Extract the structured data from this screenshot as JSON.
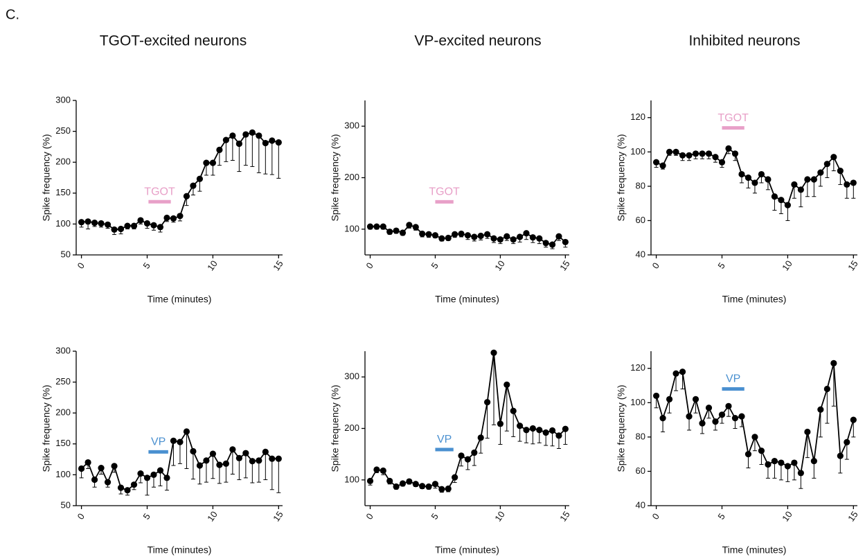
{
  "panel_label": "C.",
  "chart_data": [
    {
      "type": "line",
      "title": "TGOT-excited neurons",
      "xlabel": "Time (minutes)",
      "ylabel": "Spike frequency (%)",
      "x": [
        0,
        0.5,
        1,
        1.5,
        2,
        2.5,
        3,
        3.5,
        4,
        4.5,
        5,
        5.5,
        6,
        6.5,
        7,
        7.5,
        8,
        8.5,
        9,
        9.5,
        10,
        10.5,
        11,
        11.5,
        12,
        12.5,
        13,
        13.5,
        14,
        14.5,
        15
      ],
      "values": [
        103,
        104,
        102,
        101,
        99,
        91,
        92,
        97,
        97,
        106,
        101,
        98,
        95,
        110,
        109,
        113,
        145,
        162,
        173,
        199,
        199,
        220,
        236,
        243,
        230,
        245,
        248,
        243,
        231,
        235,
        232
      ],
      "errors": [
        8,
        12,
        6,
        6,
        6,
        8,
        8,
        5,
        5,
        6,
        8,
        8,
        8,
        6,
        6,
        8,
        15,
        15,
        20,
        20,
        20,
        25,
        35,
        40,
        45,
        50,
        55,
        60,
        50,
        55,
        58
      ],
      "color": "#000000",
      "xlim": [
        -0.4,
        15.3
      ],
      "xticks": [
        0,
        5,
        10,
        15
      ],
      "ylim": [
        50,
        300
      ],
      "yticks": [
        50,
        100,
        150,
        200,
        250,
        300
      ],
      "annotation": {
        "text": "TGOT",
        "color": "#e8a0c8",
        "x": [
          5.1,
          6.8
        ],
        "y": 136
      }
    },
    {
      "type": "line",
      "title": "VP-excited neurons",
      "xlabel": "Time (minutes)",
      "ylabel": "Spike frequency (%)",
      "x": [
        0,
        0.5,
        1,
        1.5,
        2,
        2.5,
        3,
        3.5,
        4,
        4.5,
        5,
        5.5,
        6,
        6.5,
        7,
        7.5,
        8,
        8.5,
        9,
        9.5,
        10,
        10.5,
        11,
        11.5,
        12,
        12.5,
        13,
        13.5,
        14,
        14.5,
        15
      ],
      "values": [
        105,
        105,
        105,
        95,
        97,
        93,
        108,
        104,
        91,
        90,
        88,
        82,
        83,
        90,
        91,
        88,
        85,
        87,
        90,
        82,
        80,
        86,
        80,
        85,
        92,
        84,
        82,
        73,
        70,
        86,
        75
      ],
      "errors": [
        5,
        5,
        5,
        5,
        5,
        5,
        6,
        6,
        6,
        6,
        5,
        5,
        5,
        6,
        6,
        8,
        8,
        8,
        8,
        8,
        8,
        8,
        8,
        10,
        12,
        10,
        10,
        8,
        8,
        8,
        10
      ],
      "color": "#000000",
      "xlim": [
        -0.4,
        15.3
      ],
      "xticks": [
        0,
        5,
        10,
        15
      ],
      "ylim": [
        50,
        350
      ],
      "yticks": [
        100,
        200,
        300
      ],
      "annotation": {
        "text": "TGOT",
        "color": "#e8a0c8",
        "x": [
          5.0,
          6.4
        ],
        "y": 153
      }
    },
    {
      "type": "line",
      "title": "Inhibited neurons",
      "xlabel": "Time (minutes)",
      "ylabel": "Spike frequency (%)",
      "x": [
        0,
        0.5,
        1,
        1.5,
        2,
        2.5,
        3,
        3.5,
        4,
        4.5,
        5,
        5.5,
        6,
        6.5,
        7,
        7.5,
        8,
        8.5,
        9,
        9.5,
        10,
        10.5,
        11,
        11.5,
        12,
        12.5,
        13,
        13.5,
        14,
        14.5,
        15
      ],
      "values": [
        94,
        92,
        100,
        100,
        98,
        98,
        99,
        99,
        99,
        97,
        94,
        102,
        99,
        87,
        85,
        82,
        87,
        84,
        74,
        72,
        69,
        81,
        78,
        84,
        84,
        88,
        93,
        97,
        89,
        81,
        82
      ],
      "errors": [
        3,
        2,
        2,
        2,
        3,
        3,
        3,
        3,
        3,
        3,
        3,
        3,
        4,
        5,
        6,
        6,
        5,
        6,
        8,
        8,
        9,
        8,
        10,
        10,
        10,
        8,
        8,
        8,
        8,
        8,
        9
      ],
      "color": "#000000",
      "xlim": [
        -0.4,
        15.3
      ],
      "xticks": [
        0,
        5,
        10,
        15
      ],
      "ylim": [
        40,
        130
      ],
      "yticks": [
        40,
        60,
        80,
        100,
        120
      ],
      "annotation": {
        "text": "TGOT",
        "color": "#e8a0c8",
        "x": [
          5.0,
          6.7
        ],
        "y": 114
      }
    },
    {
      "type": "line",
      "xlabel": "Time (minutes)",
      "ylabel": "Spike frequency (%)",
      "x": [
        0,
        0.5,
        1,
        1.5,
        2,
        2.5,
        3,
        3.5,
        4,
        4.5,
        5,
        5.5,
        6,
        6.5,
        7,
        7.5,
        8,
        8.5,
        9,
        9.5,
        10,
        10.5,
        11,
        11.5,
        12,
        12.5,
        13,
        13.5,
        14,
        14.5,
        15
      ],
      "values": [
        110,
        120,
        92,
        111,
        88,
        114,
        79,
        75,
        84,
        102,
        95,
        100,
        107,
        95,
        155,
        153,
        170,
        138,
        115,
        123,
        134,
        116,
        118,
        141,
        127,
        135,
        122,
        123,
        137,
        126,
        126
      ],
      "errors": [
        15,
        10,
        12,
        10,
        8,
        10,
        10,
        8,
        8,
        15,
        28,
        20,
        25,
        20,
        40,
        35,
        60,
        45,
        30,
        35,
        40,
        30,
        30,
        40,
        35,
        40,
        35,
        35,
        45,
        50,
        55
      ],
      "color": "#000000",
      "xlim": [
        -0.4,
        15.3
      ],
      "xticks": [
        0,
        5,
        10,
        15
      ],
      "ylim": [
        50,
        300
      ],
      "yticks": [
        50,
        100,
        150,
        200,
        250,
        300
      ],
      "annotation": {
        "text": "VP",
        "color": "#4a90d0",
        "x": [
          5.1,
          6.6
        ],
        "y": 137
      }
    },
    {
      "type": "line",
      "xlabel": "Time (minutes)",
      "ylabel": "Spike frequency (%)",
      "x": [
        0,
        0.5,
        1,
        1.5,
        2,
        2.5,
        3,
        3.5,
        4,
        4.5,
        5,
        5.5,
        6,
        6.5,
        7,
        7.5,
        8,
        8.5,
        9,
        9.5,
        10,
        10.5,
        11,
        11.5,
        12,
        12.5,
        13,
        13.5,
        14,
        14.5,
        15
      ],
      "values": [
        98,
        120,
        118,
        98,
        87,
        93,
        97,
        92,
        88,
        87,
        92,
        82,
        83,
        105,
        147,
        140,
        153,
        182,
        251,
        347,
        209,
        285,
        234,
        205,
        197,
        200,
        197,
        192,
        196,
        186,
        199
      ],
      "errors": [
        8,
        6,
        8,
        6,
        5,
        5,
        5,
        5,
        5,
        5,
        8,
        6,
        6,
        10,
        20,
        20,
        25,
        30,
        70,
        140,
        40,
        90,
        50,
        30,
        25,
        30,
        25,
        25,
        30,
        25,
        30
      ],
      "color": "#000000",
      "xlim": [
        -0.4,
        15.3
      ],
      "xticks": [
        0,
        5,
        10,
        15
      ],
      "ylim": [
        50,
        350
      ],
      "yticks": [
        100,
        200,
        300
      ],
      "annotation": {
        "text": "VP",
        "color": "#4a90d0",
        "x": [
          5.0,
          6.4
        ],
        "y": 159
      }
    },
    {
      "type": "line",
      "xlabel": "Time (minutes)",
      "ylabel": "Spike frequency (%)",
      "x": [
        0,
        0.5,
        1,
        1.5,
        2,
        2.5,
        3,
        3.5,
        4,
        4.5,
        5,
        5.5,
        6,
        6.5,
        7,
        7.5,
        8,
        8.5,
        9,
        9.5,
        10,
        10.5,
        11,
        11.5,
        12,
        12.5,
        13,
        13.5,
        14,
        14.5,
        15
      ],
      "values": [
        104,
        91,
        102,
        117,
        118,
        92,
        102,
        88,
        97,
        89,
        93,
        98,
        91,
        92,
        70,
        80,
        72,
        64,
        66,
        65,
        63,
        65,
        59,
        83,
        66,
        96,
        108,
        123,
        69,
        77,
        90
      ],
      "errors": [
        7,
        8,
        8,
        10,
        10,
        8,
        8,
        6,
        6,
        5,
        5,
        6,
        6,
        6,
        8,
        8,
        8,
        8,
        10,
        10,
        9,
        10,
        9,
        15,
        10,
        16,
        20,
        25,
        10,
        10,
        10
      ],
      "color": "#000000",
      "xlim": [
        -0.4,
        15.3
      ],
      "xticks": [
        0,
        5,
        10,
        15
      ],
      "ylim": [
        40,
        130
      ],
      "yticks": [
        40,
        60,
        80,
        100,
        120
      ],
      "annotation": {
        "text": "VP",
        "color": "#4a90d0",
        "x": [
          5.0,
          6.7
        ],
        "y": 108
      }
    }
  ]
}
